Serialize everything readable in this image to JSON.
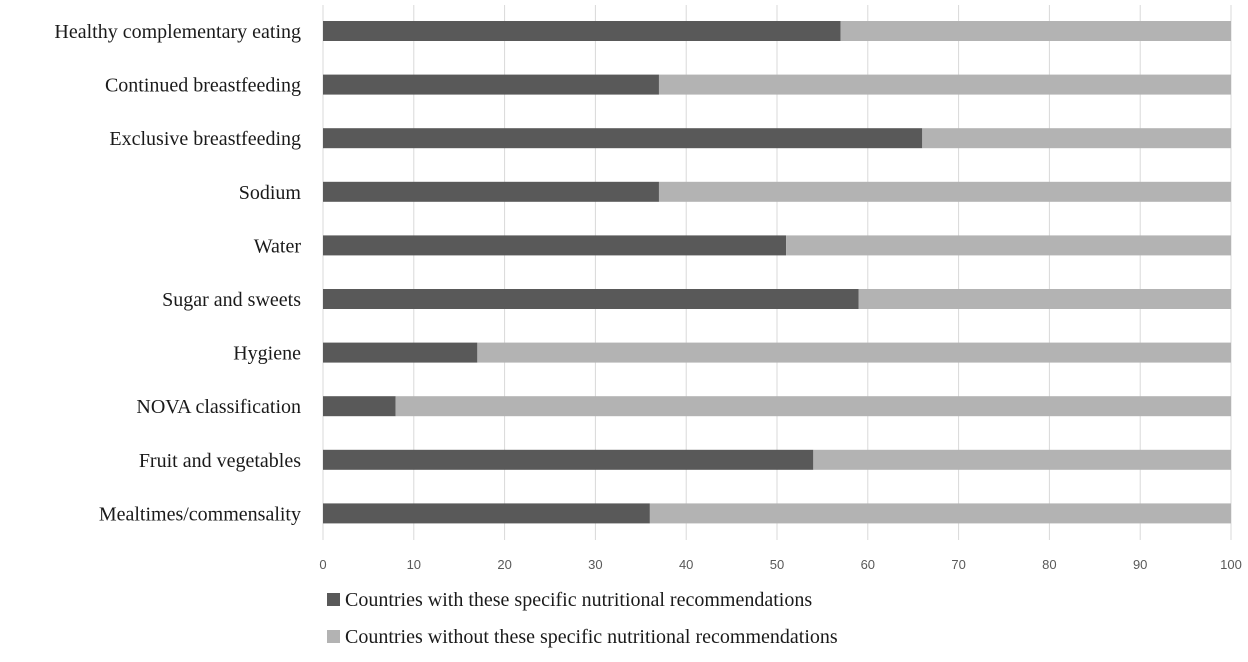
{
  "chart_data": {
    "type": "bar",
    "orientation": "horizontal",
    "stacked": true,
    "categories": [
      "Healthy complementary eating",
      "Continued breastfeeding",
      "Exclusive breastfeeding",
      "Sodium",
      "Water",
      "Sugar and sweets",
      "Hygiene",
      "NOVA classification",
      "Fruit and vegetables",
      "Mealtimes/commensality"
    ],
    "series": [
      {
        "name": "Countries with these specific nutritional recommendations",
        "color": "#595959",
        "values": [
          57,
          37,
          66,
          37,
          51,
          59,
          17,
          8,
          54,
          36
        ]
      },
      {
        "name": "Countries without these specific nutritional recommendations",
        "color": "#b3b3b3",
        "values": [
          43,
          63,
          34,
          63,
          49,
          41,
          83,
          92,
          46,
          64
        ]
      }
    ],
    "xlim": [
      0,
      100
    ],
    "xticks": [
      "0",
      "10",
      "20",
      "30",
      "40",
      "50",
      "60",
      "70",
      "80",
      "90",
      "100"
    ],
    "grid": true,
    "legend_position": "bottom"
  }
}
